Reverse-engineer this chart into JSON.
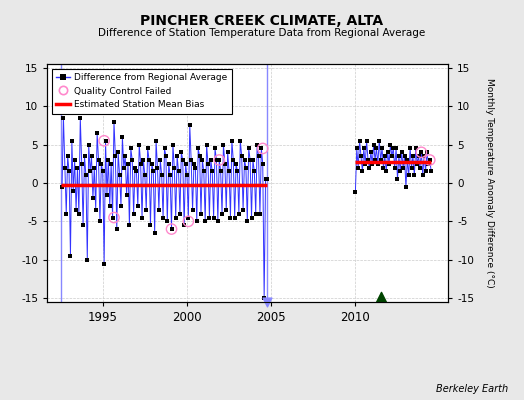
{
  "title": "PINCHER CREEK CLIMATE, ALTA",
  "subtitle": "Difference of Station Temperature Data from Regional Average",
  "ylabel": "Monthly Temperature Anomaly Difference (°C)",
  "ylim": [
    -15.5,
    15.5
  ],
  "xlim": [
    1991.7,
    2015.5
  ],
  "xticks": [
    1995,
    2000,
    2005,
    2010
  ],
  "yticks": [
    -15,
    -10,
    -5,
    0,
    5,
    10,
    15
  ],
  "background_color": "#e8e8e8",
  "plot_bg_color": "#ffffff",
  "segment1_bias": -0.3,
  "segment2_bias": 2.8,
  "segment1_start": 1992.5,
  "segment1_end": 2004.75,
  "segment2_start": 2010.0,
  "segment2_end": 2014.5,
  "vline1_x": 1992.5,
  "vline2_x": 2004.75,
  "record_gap_x": 2011.5,
  "record_gap_y": -14.8,
  "data1_x": [
    1992.583,
    1992.667,
    1992.75,
    1992.833,
    1992.917,
    1993.0,
    1993.083,
    1993.167,
    1993.25,
    1993.333,
    1993.417,
    1993.5,
    1993.583,
    1993.667,
    1993.75,
    1993.833,
    1993.917,
    1994.0,
    1994.083,
    1994.167,
    1994.25,
    1994.333,
    1994.417,
    1994.5,
    1994.583,
    1994.667,
    1994.75,
    1994.833,
    1994.917,
    1995.0,
    1995.083,
    1995.167,
    1995.25,
    1995.333,
    1995.417,
    1995.5,
    1995.583,
    1995.667,
    1995.75,
    1995.833,
    1995.917,
    1996.0,
    1996.083,
    1996.167,
    1996.25,
    1996.333,
    1996.417,
    1996.5,
    1996.583,
    1996.667,
    1996.75,
    1996.833,
    1996.917,
    1997.0,
    1997.083,
    1997.167,
    1997.25,
    1997.333,
    1997.417,
    1997.5,
    1997.583,
    1997.667,
    1997.75,
    1997.833,
    1997.917,
    1998.0,
    1998.083,
    1998.167,
    1998.25,
    1998.333,
    1998.417,
    1998.5,
    1998.583,
    1998.667,
    1998.75,
    1998.833,
    1998.917,
    1999.0,
    1999.083,
    1999.167,
    1999.25,
    1999.333,
    1999.417,
    1999.5,
    1999.583,
    1999.667,
    1999.75,
    1999.833,
    1999.917,
    2000.0,
    2000.083,
    2000.167,
    2000.25,
    2000.333,
    2000.417,
    2000.5,
    2000.583,
    2000.667,
    2000.75,
    2000.833,
    2000.917,
    2001.0,
    2001.083,
    2001.167,
    2001.25,
    2001.333,
    2001.417,
    2001.5,
    2001.583,
    2001.667,
    2001.75,
    2001.833,
    2001.917,
    2002.0,
    2002.083,
    2002.167,
    2002.25,
    2002.333,
    2002.417,
    2002.5,
    2002.583,
    2002.667,
    2002.75,
    2002.833,
    2002.917,
    2003.0,
    2003.083,
    2003.167,
    2003.25,
    2003.333,
    2003.417,
    2003.5,
    2003.583,
    2003.667,
    2003.75,
    2003.833,
    2003.917,
    2004.0,
    2004.083,
    2004.167,
    2004.25,
    2004.333,
    2004.417,
    2004.5,
    2004.583,
    2004.667,
    2004.75
  ],
  "data1_y": [
    -0.5,
    8.5,
    2.0,
    -4.0,
    3.5,
    1.5,
    -9.5,
    5.5,
    -1.0,
    3.0,
    -3.5,
    2.0,
    -4.0,
    8.5,
    2.5,
    -5.5,
    3.5,
    1.0,
    -10.0,
    5.0,
    1.5,
    3.5,
    -2.0,
    2.0,
    -3.5,
    6.5,
    3.0,
    -5.0,
    2.5,
    1.5,
    -10.5,
    5.5,
    -1.5,
    3.0,
    -3.0,
    2.5,
    -4.5,
    8.0,
    3.5,
    -6.0,
    4.0,
    1.0,
    -3.0,
    6.0,
    2.0,
    3.5,
    -1.5,
    2.5,
    -5.5,
    4.5,
    3.0,
    -4.0,
    2.0,
    1.5,
    -3.0,
    5.0,
    2.5,
    -4.5,
    3.0,
    1.0,
    -3.5,
    4.5,
    3.0,
    -5.5,
    2.5,
    1.5,
    -6.5,
    5.5,
    2.0,
    -3.5,
    3.0,
    1.0,
    -4.5,
    4.5,
    3.5,
    -5.0,
    2.5,
    1.0,
    -6.0,
    5.0,
    2.0,
    -4.5,
    3.5,
    1.5,
    -4.0,
    4.0,
    3.0,
    -5.5,
    2.5,
    1.0,
    -4.5,
    7.5,
    3.0,
    -3.5,
    2.5,
    2.0,
    -5.0,
    4.5,
    3.5,
    -4.0,
    3.0,
    1.5,
    -5.0,
    5.0,
    2.5,
    -4.5,
    3.0,
    1.5,
    -4.5,
    4.5,
    3.0,
    -5.0,
    3.0,
    1.5,
    -4.0,
    5.0,
    2.5,
    -3.5,
    4.0,
    1.5,
    -4.5,
    5.5,
    3.0,
    -4.5,
    2.5,
    1.5,
    -4.0,
    5.5,
    3.5,
    -3.5,
    3.0,
    2.0,
    -5.0,
    4.5,
    3.0,
    -4.5,
    3.0,
    1.5,
    -4.0,
    5.0,
    3.5,
    -4.0,
    4.5,
    2.5,
    -15.0,
    0.5,
    0.5
  ],
  "data2_x": [
    2010.0,
    2010.083,
    2010.167,
    2010.25,
    2010.333,
    2010.417,
    2010.5,
    2010.583,
    2010.667,
    2010.75,
    2010.833,
    2010.917,
    2011.0,
    2011.083,
    2011.167,
    2011.25,
    2011.333,
    2011.417,
    2011.5,
    2011.583,
    2011.667,
    2011.75,
    2011.833,
    2011.917,
    2012.0,
    2012.083,
    2012.167,
    2012.25,
    2012.333,
    2012.417,
    2012.5,
    2012.583,
    2012.667,
    2012.75,
    2012.833,
    2012.917,
    2013.0,
    2013.083,
    2013.167,
    2013.25,
    2013.333,
    2013.417,
    2013.5,
    2013.583,
    2013.667,
    2013.75,
    2013.833,
    2013.917,
    2014.0,
    2014.083,
    2014.167,
    2014.25,
    2014.333,
    2014.417,
    2014.5
  ],
  "data2_y": [
    -1.2,
    4.5,
    2.0,
    5.5,
    3.5,
    1.5,
    4.5,
    2.5,
    5.5,
    3.0,
    2.0,
    4.0,
    2.5,
    5.0,
    3.0,
    4.5,
    2.5,
    5.5,
    3.0,
    4.5,
    2.0,
    3.5,
    1.5,
    4.0,
    2.5,
    5.0,
    3.5,
    4.5,
    2.0,
    4.5,
    0.5,
    3.5,
    1.5,
    4.0,
    2.0,
    3.5,
    -0.5,
    3.0,
    1.0,
    4.5,
    2.0,
    3.5,
    1.0,
    4.5,
    2.5,
    3.5,
    2.0,
    4.0,
    1.0,
    3.5,
    1.5,
    4.0,
    2.5,
    3.0,
    1.5
  ],
  "qc_x": [
    1995.083,
    1995.667,
    1999.083,
    2000.083,
    2001.917,
    2004.5,
    2013.917,
    2014.417
  ],
  "qc_y": [
    5.5,
    -4.5,
    -6.0,
    -5.0,
    3.0,
    4.5,
    4.0,
    3.0
  ],
  "line_color": "#3333ff",
  "dot_color": "#000000",
  "bias_color": "#ff0000",
  "qc_color": "#ff88cc",
  "vline_color": "#8888ff",
  "record_gap_color": "#004400"
}
